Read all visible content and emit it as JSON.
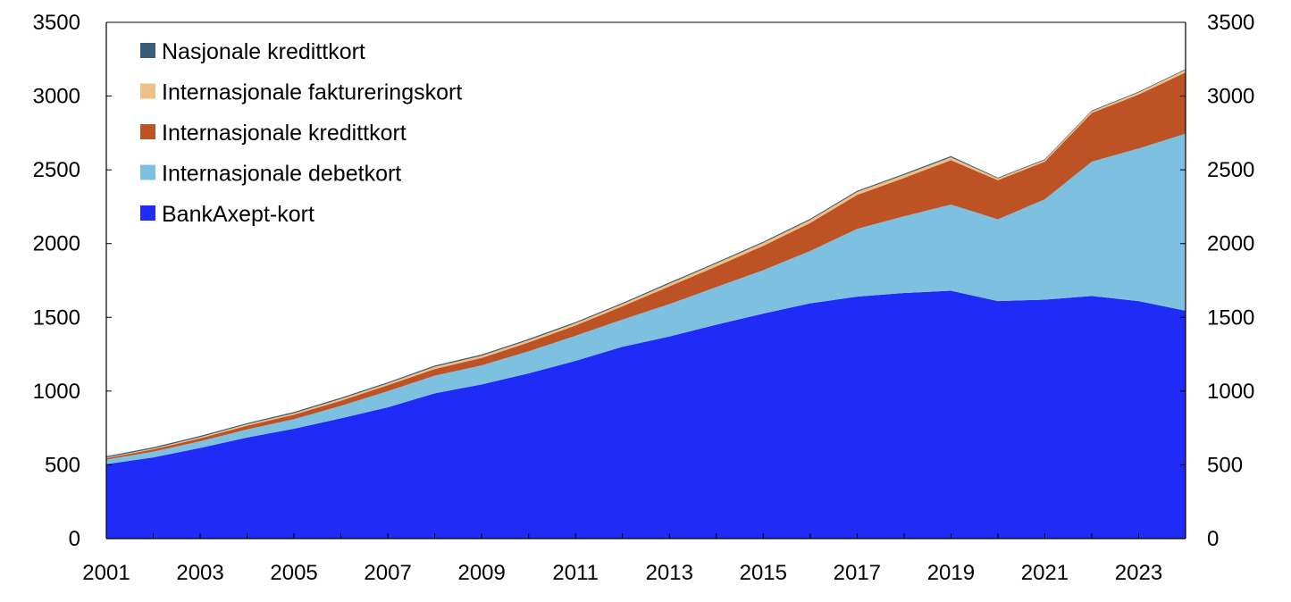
{
  "chart_data": {
    "type": "area",
    "stacked": true,
    "x": [
      2001,
      2002,
      2003,
      2004,
      2005,
      2006,
      2007,
      2008,
      2009,
      2010,
      2011,
      2012,
      2013,
      2014,
      2015,
      2016,
      2017,
      2018,
      2019,
      2020,
      2021,
      2022,
      2023,
      2024
    ],
    "x_tick_labels": [
      "2001",
      "2003",
      "2005",
      "2007",
      "2009",
      "2011",
      "2013",
      "2015",
      "2017",
      "2019",
      "2021",
      "2023"
    ],
    "y_tick_labels": [
      "0",
      "500",
      "1000",
      "1500",
      "2000",
      "2500",
      "3000",
      "3500"
    ],
    "ylim": [
      0,
      3500
    ],
    "xlim": [
      2001,
      2024
    ],
    "grid": false,
    "legend_position": "top-left",
    "secondary_y_axis": true,
    "series": [
      {
        "name": "BankAxept-kort",
        "color": "#1f2cf8",
        "values": [
          505,
          550,
          615,
          685,
          745,
          815,
          890,
          985,
          1045,
          1120,
          1205,
          1300,
          1370,
          1450,
          1525,
          1595,
          1640,
          1665,
          1680,
          1610,
          1620,
          1645,
          1610,
          1545
        ]
      },
      {
        "name": "Internasjonale debetkort",
        "color": "#7ec0df",
        "values": [
          30,
          40,
          45,
          55,
          65,
          85,
          110,
          120,
          130,
          150,
          170,
          185,
          220,
          255,
          295,
          355,
          460,
          520,
          585,
          555,
          680,
          910,
          1035,
          1200
        ]
      },
      {
        "name": "Internasjonale kredittkort",
        "color": "#bd5224",
        "values": [
          10,
          15,
          20,
          25,
          30,
          35,
          40,
          45,
          50,
          60,
          70,
          90,
          120,
          140,
          165,
          190,
          230,
          260,
          300,
          265,
          255,
          330,
          365,
          415
        ]
      },
      {
        "name": "Internasjonale faktureringskort",
        "color": "#f0bf85",
        "values": [
          5,
          6,
          8,
          10,
          10,
          12,
          12,
          15,
          15,
          15,
          15,
          15,
          18,
          20,
          20,
          20,
          20,
          20,
          20,
          12,
          12,
          12,
          15,
          18
        ]
      },
      {
        "name": "Nasjonale kredittkort",
        "color": "#3a5c78",
        "values": [
          8,
          8,
          8,
          8,
          8,
          8,
          8,
          8,
          8,
          8,
          8,
          8,
          8,
          8,
          8,
          8,
          8,
          8,
          8,
          5,
          5,
          5,
          5,
          5
        ]
      }
    ]
  }
}
